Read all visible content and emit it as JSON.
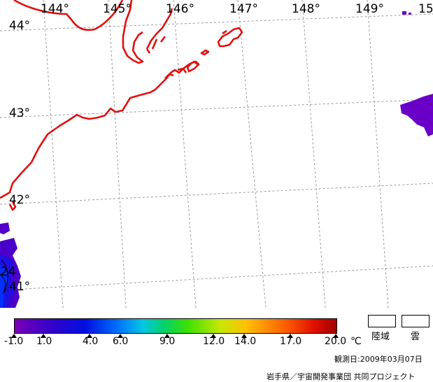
{
  "map": {
    "lon_labels": [
      "144°",
      "145°",
      "146°",
      "147°",
      "148°",
      "149°",
      "15"
    ],
    "lat_labels": [
      "44°",
      "43°",
      "42°",
      "41°"
    ],
    "inset_value": "24",
    "coast_color": "#e01010",
    "grid_color": "#9a9a9a",
    "cloud_color": "#6a00c8"
  },
  "colorbar": {
    "ticks": [
      "-1.0",
      "1.0",
      "4.0",
      "6.0",
      "9.0",
      "12.0",
      "14.0",
      "17.0",
      "20.0"
    ],
    "unit": "℃"
  },
  "legend": {
    "land": "陸域",
    "cloud": "雲"
  },
  "footer": {
    "observation": "観測日:2009年03月07日",
    "credit": "岩手県／宇宙開発事業団 共同プロジェクト"
  }
}
